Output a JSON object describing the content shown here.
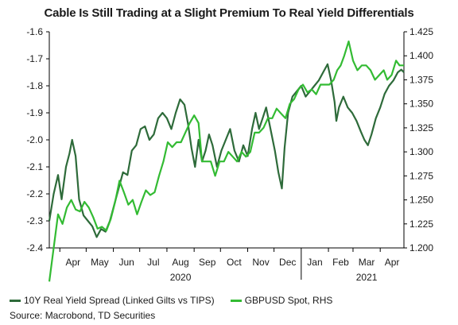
{
  "chart_data": {
    "type": "line",
    "title": "Cable Is Still Trading at a Slight Premium To Real Yield Differentials",
    "x_ticks": [
      "Apr",
      "May",
      "Jun",
      "Jul",
      "Aug",
      "Sep",
      "Oct",
      "Nov",
      "Dec",
      "Jan",
      "Feb",
      "Mar",
      "Apr"
    ],
    "x_year_labels": [
      {
        "label": "2020",
        "month": "Aug"
      },
      {
        "label": "2021",
        "month": "Mar"
      }
    ],
    "y_left": {
      "ticks": [
        "-1.6",
        "-1.7",
        "-1.8",
        "-1.9",
        "-2.0",
        "-2.1",
        "-2.2",
        "-2.3",
        "-2.4"
      ],
      "lim": [
        -2.4,
        -1.6
      ]
    },
    "y_right": {
      "ticks": [
        "1.425",
        "1.400",
        "1.375",
        "1.350",
        "1.325",
        "1.300",
        "1.275",
        "1.250",
        "1.225",
        "1.200"
      ],
      "lim": [
        1.2,
        1.425
      ]
    },
    "x_range": [
      "2020-03-20",
      "2021-04-28"
    ],
    "series": [
      {
        "name": "10Y Real Yield Spread (Linked Gilts vs TIPS)",
        "axis": "left",
        "color": "#2e6b3a",
        "points": [
          [
            "2020-03-20",
            -2.3
          ],
          [
            "2020-03-25",
            -2.2
          ],
          [
            "2020-03-30",
            -2.13
          ],
          [
            "2020-04-03",
            -2.22
          ],
          [
            "2020-04-08",
            -2.1
          ],
          [
            "2020-04-12",
            -2.05
          ],
          [
            "2020-04-15",
            -2.0
          ],
          [
            "2020-04-19",
            -2.06
          ],
          [
            "2020-04-23",
            -2.22
          ],
          [
            "2020-04-28",
            -2.28
          ],
          [
            "2020-05-03",
            -2.3
          ],
          [
            "2020-05-08",
            -2.32
          ],
          [
            "2020-05-13",
            -2.36
          ],
          [
            "2020-05-18",
            -2.33
          ],
          [
            "2020-05-23",
            -2.34
          ],
          [
            "2020-05-28",
            -2.3
          ],
          [
            "2020-06-02",
            -2.24
          ],
          [
            "2020-06-07",
            -2.18
          ],
          [
            "2020-06-12",
            -2.12
          ],
          [
            "2020-06-17",
            -2.13
          ],
          [
            "2020-06-22",
            -2.04
          ],
          [
            "2020-06-27",
            -2.02
          ],
          [
            "2020-07-02",
            -1.96
          ],
          [
            "2020-07-07",
            -1.95
          ],
          [
            "2020-07-12",
            -2.0
          ],
          [
            "2020-07-17",
            -1.98
          ],
          [
            "2020-07-22",
            -1.92
          ],
          [
            "2020-07-27",
            -1.9
          ],
          [
            "2020-08-01",
            -1.92
          ],
          [
            "2020-08-06",
            -1.96
          ],
          [
            "2020-08-11",
            -1.9
          ],
          [
            "2020-08-16",
            -1.85
          ],
          [
            "2020-08-21",
            -1.87
          ],
          [
            "2020-08-25",
            -1.94
          ],
          [
            "2020-08-29",
            -2.03
          ],
          [
            "2020-09-02",
            -2.1
          ],
          [
            "2020-09-06",
            -2.0
          ],
          [
            "2020-09-10",
            -2.08
          ],
          [
            "2020-09-14",
            -2.04
          ],
          [
            "2020-09-18",
            -1.98
          ],
          [
            "2020-09-22",
            -2.02
          ],
          [
            "2020-09-27",
            -2.1
          ],
          [
            "2020-10-02",
            -2.04
          ],
          [
            "2020-10-07",
            -2.0
          ],
          [
            "2020-10-12",
            -1.96
          ],
          [
            "2020-10-17",
            -2.04
          ],
          [
            "2020-10-22",
            -2.08
          ],
          [
            "2020-10-27",
            -2.02
          ],
          [
            "2020-11-01",
            -2.06
          ],
          [
            "2020-11-06",
            -1.96
          ],
          [
            "2020-11-10",
            -1.9
          ],
          [
            "2020-11-14",
            -1.96
          ],
          [
            "2020-11-18",
            -1.92
          ],
          [
            "2020-11-22",
            -1.88
          ],
          [
            "2020-11-27",
            -1.96
          ],
          [
            "2020-12-02",
            -2.04
          ],
          [
            "2020-12-06",
            -2.12
          ],
          [
            "2020-12-10",
            -2.18
          ],
          [
            "2020-12-13",
            -2.03
          ],
          [
            "2020-12-17",
            -1.9
          ],
          [
            "2020-12-22",
            -1.84
          ],
          [
            "2020-12-27",
            -1.82
          ],
          [
            "2021-01-01",
            -1.8
          ],
          [
            "2021-01-06",
            -1.84
          ],
          [
            "2021-01-11",
            -1.82
          ],
          [
            "2021-01-16",
            -1.8
          ],
          [
            "2021-01-21",
            -1.78
          ],
          [
            "2021-01-26",
            -1.75
          ],
          [
            "2021-01-31",
            -1.72
          ],
          [
            "2021-02-04",
            -1.78
          ],
          [
            "2021-02-08",
            -1.86
          ],
          [
            "2021-02-10",
            -1.93
          ],
          [
            "2021-02-13",
            -1.88
          ],
          [
            "2021-02-18",
            -1.84
          ],
          [
            "2021-02-23",
            -1.88
          ],
          [
            "2021-02-28",
            -1.9
          ],
          [
            "2021-03-05",
            -1.93
          ],
          [
            "2021-03-10",
            -1.97
          ],
          [
            "2021-03-14",
            -2.0
          ],
          [
            "2021-03-18",
            -2.02
          ],
          [
            "2021-03-22",
            -1.98
          ],
          [
            "2021-03-27",
            -1.92
          ],
          [
            "2021-04-01",
            -1.88
          ],
          [
            "2021-04-06",
            -1.83
          ],
          [
            "2021-04-11",
            -1.8
          ],
          [
            "2021-04-16",
            -1.78
          ],
          [
            "2021-04-21",
            -1.75
          ],
          [
            "2021-04-25",
            -1.74
          ],
          [
            "2021-04-28",
            -1.75
          ]
        ]
      },
      {
        "name": "GBPUSD Spot, RHS",
        "axis": "right",
        "color": "#33bb33",
        "points": [
          [
            "2020-03-20",
            1.165
          ],
          [
            "2020-03-25",
            1.2
          ],
          [
            "2020-03-30",
            1.235
          ],
          [
            "2020-04-04",
            1.225
          ],
          [
            "2020-04-09",
            1.242
          ],
          [
            "2020-04-14",
            1.25
          ],
          [
            "2020-04-19",
            1.24
          ],
          [
            "2020-04-24",
            1.238
          ],
          [
            "2020-04-29",
            1.248
          ],
          [
            "2020-05-04",
            1.242
          ],
          [
            "2020-05-09",
            1.232
          ],
          [
            "2020-05-14",
            1.22
          ],
          [
            "2020-05-19",
            1.222
          ],
          [
            "2020-05-24",
            1.218
          ],
          [
            "2020-05-29",
            1.23
          ],
          [
            "2020-06-03",
            1.248
          ],
          [
            "2020-06-08",
            1.27
          ],
          [
            "2020-06-13",
            1.258
          ],
          [
            "2020-06-18",
            1.245
          ],
          [
            "2020-06-23",
            1.25
          ],
          [
            "2020-06-28",
            1.235
          ],
          [
            "2020-07-03",
            1.248
          ],
          [
            "2020-07-08",
            1.26
          ],
          [
            "2020-07-13",
            1.255
          ],
          [
            "2020-07-18",
            1.258
          ],
          [
            "2020-07-23",
            1.275
          ],
          [
            "2020-07-28",
            1.29
          ],
          [
            "2020-08-02",
            1.31
          ],
          [
            "2020-08-07",
            1.305
          ],
          [
            "2020-08-12",
            1.31
          ],
          [
            "2020-08-17",
            1.31
          ],
          [
            "2020-08-22",
            1.32
          ],
          [
            "2020-08-27",
            1.33
          ],
          [
            "2020-09-01",
            1.338
          ],
          [
            "2020-09-06",
            1.33
          ],
          [
            "2020-09-10",
            1.29
          ],
          [
            "2020-09-15",
            1.29
          ],
          [
            "2020-09-20",
            1.29
          ],
          [
            "2020-09-25",
            1.275
          ],
          [
            "2020-09-30",
            1.29
          ],
          [
            "2020-10-05",
            1.29
          ],
          [
            "2020-10-10",
            1.3
          ],
          [
            "2020-10-15",
            1.295
          ],
          [
            "2020-10-20",
            1.29
          ],
          [
            "2020-10-25",
            1.3
          ],
          [
            "2020-10-30",
            1.295
          ],
          [
            "2020-11-04",
            1.3
          ],
          [
            "2020-11-09",
            1.32
          ],
          [
            "2020-11-14",
            1.32
          ],
          [
            "2020-11-19",
            1.325
          ],
          [
            "2020-11-24",
            1.335
          ],
          [
            "2020-11-29",
            1.335
          ],
          [
            "2020-12-04",
            1.345
          ],
          [
            "2020-12-09",
            1.34
          ],
          [
            "2020-12-14",
            1.335
          ],
          [
            "2020-12-19",
            1.35
          ],
          [
            "2020-12-24",
            1.355
          ],
          [
            "2020-12-29",
            1.365
          ],
          [
            "2021-01-03",
            1.37
          ],
          [
            "2021-01-08",
            1.362
          ],
          [
            "2021-01-13",
            1.365
          ],
          [
            "2021-01-18",
            1.36
          ],
          [
            "2021-01-23",
            1.37
          ],
          [
            "2021-01-28",
            1.37
          ],
          [
            "2021-02-02",
            1.37
          ],
          [
            "2021-02-07",
            1.375
          ],
          [
            "2021-02-11",
            1.385
          ],
          [
            "2021-02-15",
            1.39
          ],
          [
            "2021-02-19",
            1.4
          ],
          [
            "2021-02-24",
            1.415
          ],
          [
            "2021-03-01",
            1.395
          ],
          [
            "2021-03-06",
            1.385
          ],
          [
            "2021-03-11",
            1.39
          ],
          [
            "2021-03-16",
            1.39
          ],
          [
            "2021-03-21",
            1.385
          ],
          [
            "2021-03-26",
            1.375
          ],
          [
            "2021-03-31",
            1.38
          ],
          [
            "2021-04-05",
            1.385
          ],
          [
            "2021-04-09",
            1.375
          ],
          [
            "2021-04-14",
            1.38
          ],
          [
            "2021-04-19",
            1.395
          ],
          [
            "2021-04-23",
            1.39
          ],
          [
            "2021-04-28",
            1.39
          ]
        ]
      }
    ]
  },
  "source": "Source: Macrobond, TD Securities"
}
